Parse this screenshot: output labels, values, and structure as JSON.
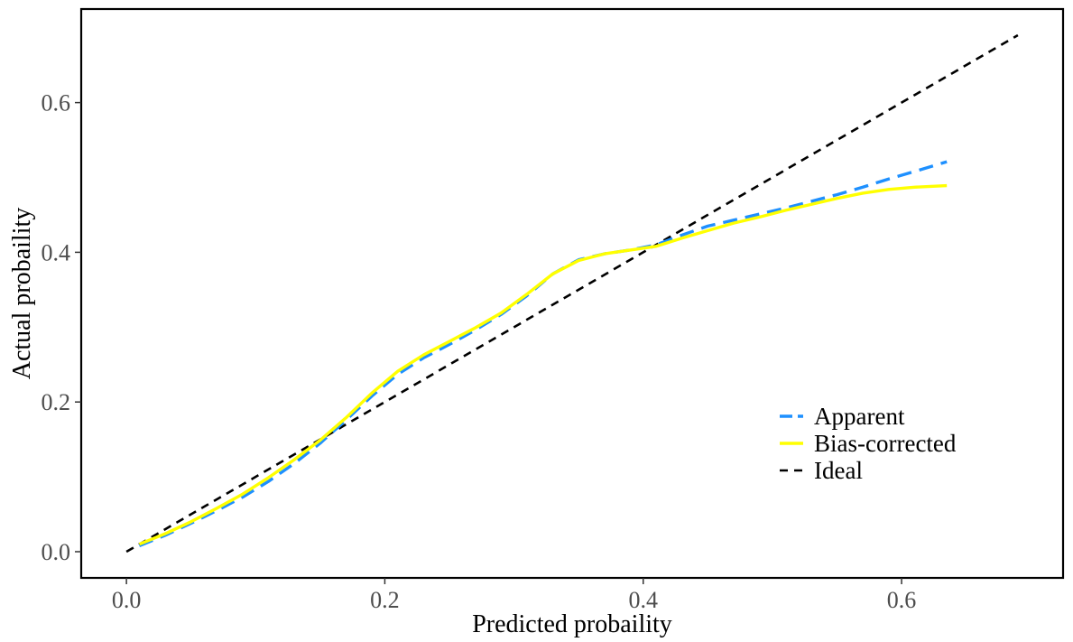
{
  "chart_data": {
    "type": "line",
    "title": "",
    "xlabel": "Predicted probaility",
    "ylabel": "Actual probaility",
    "xlim": [
      -0.035,
      0.725
    ],
    "ylim": [
      -0.035,
      0.725
    ],
    "x_ticks": [
      0.0,
      0.2,
      0.4,
      0.6
    ],
    "x_tick_labels": [
      "0.0",
      "0.2",
      "0.4",
      "0.6"
    ],
    "y_ticks": [
      0.0,
      0.2,
      0.4,
      0.6
    ],
    "y_tick_labels": [
      "0.0",
      "0.2",
      "0.4",
      "0.6"
    ],
    "grid": false,
    "legend_position": "bottom-right",
    "series": [
      {
        "name": "Apparent",
        "color": "#1E90FF",
        "dash": "dashed",
        "x": [
          0.01,
          0.03,
          0.05,
          0.07,
          0.09,
          0.11,
          0.13,
          0.15,
          0.17,
          0.19,
          0.21,
          0.23,
          0.25,
          0.27,
          0.29,
          0.31,
          0.33,
          0.35,
          0.37,
          0.39,
          0.41,
          0.43,
          0.45,
          0.47,
          0.49,
          0.51,
          0.53,
          0.55,
          0.57,
          0.59,
          0.61,
          0.635
        ],
        "y": [
          0.008,
          0.022,
          0.038,
          0.055,
          0.073,
          0.094,
          0.118,
          0.145,
          0.176,
          0.208,
          0.237,
          0.259,
          0.277,
          0.296,
          0.317,
          0.342,
          0.371,
          0.39,
          0.398,
          0.403,
          0.41,
          0.423,
          0.435,
          0.443,
          0.451,
          0.459,
          0.468,
          0.477,
          0.487,
          0.498,
          0.508,
          0.521
        ]
      },
      {
        "name": "Bias-corrected",
        "color": "#FFFF00",
        "dash": "solid",
        "x": [
          0.01,
          0.03,
          0.05,
          0.07,
          0.09,
          0.11,
          0.13,
          0.15,
          0.17,
          0.19,
          0.21,
          0.23,
          0.25,
          0.27,
          0.29,
          0.31,
          0.33,
          0.35,
          0.37,
          0.39,
          0.41,
          0.43,
          0.45,
          0.47,
          0.49,
          0.51,
          0.53,
          0.55,
          0.57,
          0.59,
          0.61,
          0.635
        ],
        "y": [
          0.01,
          0.024,
          0.04,
          0.058,
          0.077,
          0.099,
          0.123,
          0.149,
          0.179,
          0.212,
          0.241,
          0.263,
          0.281,
          0.299,
          0.319,
          0.344,
          0.371,
          0.389,
          0.398,
          0.403,
          0.408,
          0.419,
          0.429,
          0.439,
          0.447,
          0.456,
          0.464,
          0.472,
          0.479,
          0.484,
          0.487,
          0.489
        ]
      },
      {
        "name": "Ideal",
        "color": "#000000",
        "dash": "dashed",
        "x": [
          0.0,
          0.69
        ],
        "y": [
          0.0,
          0.69
        ]
      }
    ]
  }
}
